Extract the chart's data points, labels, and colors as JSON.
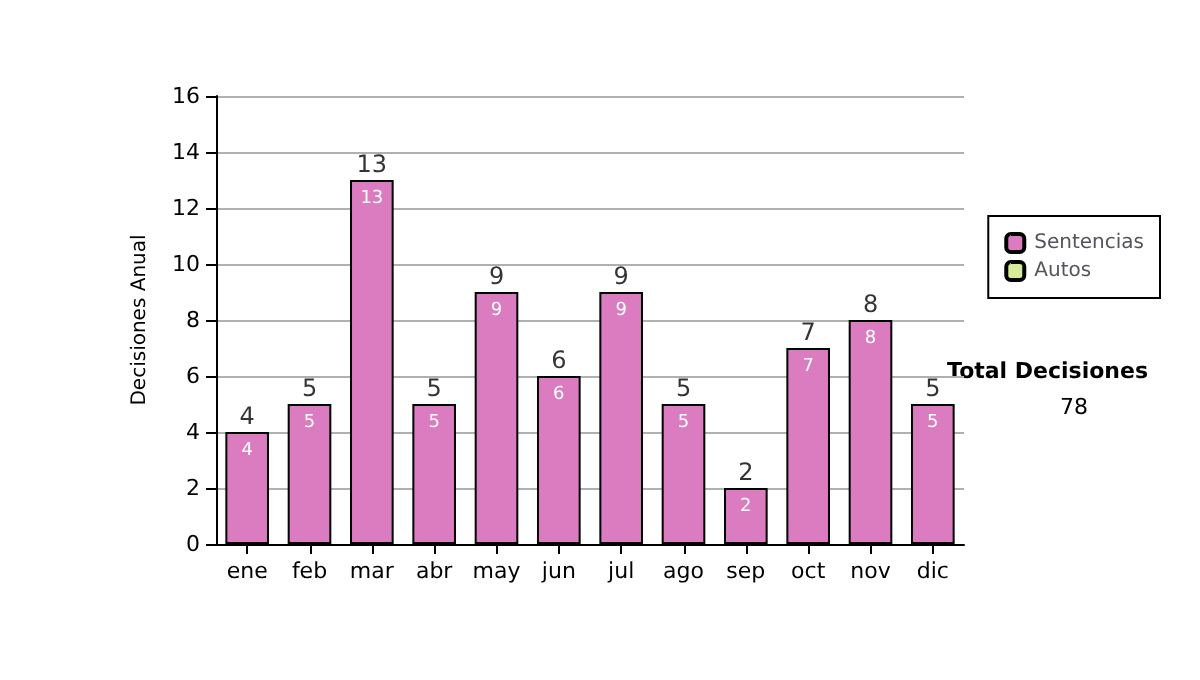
{
  "chart_data": {
    "type": "bar",
    "ylabel": "Decisiones Anual",
    "categories": [
      "ene",
      "feb",
      "mar",
      "abr",
      "may",
      "jun",
      "jul",
      "ago",
      "sep",
      "oct",
      "nov",
      "dic"
    ],
    "series": [
      {
        "name": "Sentencias",
        "color": "#da7cbf",
        "values": [
          4,
          5,
          13,
          5,
          9,
          6,
          9,
          5,
          2,
          7,
          8,
          5
        ]
      },
      {
        "name": "Autos",
        "color": "#d6ea9c",
        "values": [
          null,
          null,
          null,
          null,
          null,
          null,
          null,
          null,
          null,
          null,
          null,
          null
        ]
      }
    ],
    "stacked": true,
    "data_labels": true,
    "totals": [
      "4",
      "5",
      "13",
      "5",
      "9",
      "6",
      "9",
      "5",
      "2",
      "7",
      "8",
      "5"
    ],
    "ylim": [
      0,
      16
    ],
    "yticks": [
      0,
      2,
      4,
      6,
      8,
      10,
      12,
      14,
      16
    ],
    "grid": "y",
    "legend": "right",
    "annotations": [
      "Total Decisiones",
      "78"
    ]
  }
}
